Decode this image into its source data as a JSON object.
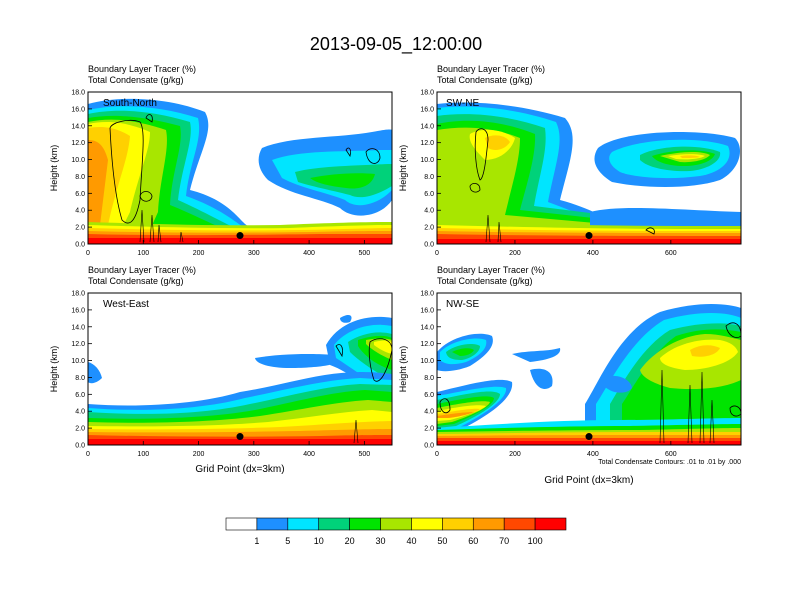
{
  "figure": {
    "title": "2013-09-05_12:00:00",
    "footer_note": "Total Condensate Contours: .01 to .01 by .000",
    "colorbar": {
      "labels": [
        "1",
        "5",
        "10",
        "20",
        "30",
        "40",
        "50",
        "60",
        "70",
        "100"
      ],
      "colors": [
        "#ffffff",
        "#1e90ff",
        "#00e5ff",
        "#00d27a",
        "#00e400",
        "#a8e600",
        "#ffff00",
        "#ffd000",
        "#ff9a00",
        "#ff4800",
        "#ff0000"
      ]
    }
  },
  "chart_data": [
    {
      "type": "heatmap",
      "label": "South-North",
      "titles": [
        "Boundary Layer Tracer   (%)",
        "Total Condensate   (g/kg)"
      ],
      "ylabel": "Height (km)",
      "xlabel": "",
      "xlim": [
        0,
        550
      ],
      "ylim": [
        0,
        18
      ],
      "xticks": [
        "0",
        "100",
        "200",
        "300",
        "400",
        "500"
      ],
      "yticks": [
        "0.0",
        "2.0",
        "4.0",
        "6.0",
        "8.0",
        "10.0",
        "12.0",
        "14.0",
        "16.0",
        "18.0"
      ],
      "marker": {
        "x": 275,
        "y": 1.0
      }
    },
    {
      "type": "heatmap",
      "label": "SW-NE",
      "titles": [
        "Boundary Layer Tracer   (%)",
        "Total Condensate   (g/kg)"
      ],
      "ylabel": "Height (km)",
      "xlabel": "",
      "xlim": [
        0,
        780
      ],
      "ylim": [
        0,
        18
      ],
      "xticks": [
        "0",
        "200",
        "400",
        "600"
      ],
      "yticks": [
        "0.0",
        "2.0",
        "4.0",
        "6.0",
        "8.0",
        "10.0",
        "12.0",
        "14.0",
        "16.0",
        "18.0"
      ],
      "marker": {
        "x": 390,
        "y": 1.0
      }
    },
    {
      "type": "heatmap",
      "label": "West-East",
      "titles": [
        "Boundary Layer Tracer   (%)",
        "Total Condensate   (g/kg)"
      ],
      "ylabel": "Height (km)",
      "xlabel": "Grid Point (dx=3km)",
      "xlim": [
        0,
        550
      ],
      "ylim": [
        0,
        18
      ],
      "xticks": [
        "0",
        "100",
        "200",
        "300",
        "400",
        "500"
      ],
      "yticks": [
        "0.0",
        "2.0",
        "4.0",
        "6.0",
        "8.0",
        "10.0",
        "12.0",
        "14.0",
        "16.0",
        "18.0"
      ],
      "marker": {
        "x": 275,
        "y": 1.0
      }
    },
    {
      "type": "heatmap",
      "label": "NW-SE",
      "titles": [
        "Boundary Layer Tracer   (%)",
        "Total Condensate   (g/kg)"
      ],
      "ylabel": "Height (km)",
      "xlabel": "Grid Point (dx=3km)",
      "xlim": [
        0,
        780
      ],
      "ylim": [
        0,
        18
      ],
      "xticks": [
        "0",
        "200",
        "400",
        "600"
      ],
      "yticks": [
        "0.0",
        "2.0",
        "4.0",
        "6.0",
        "8.0",
        "10.0",
        "12.0",
        "14.0",
        "16.0",
        "18.0"
      ],
      "marker": {
        "x": 390,
        "y": 1.0
      }
    }
  ]
}
